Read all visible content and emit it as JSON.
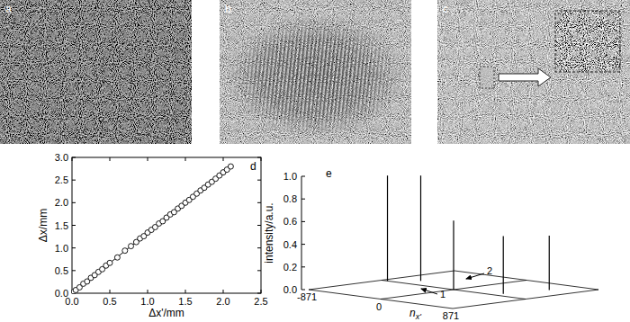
{
  "panels": [
    {
      "label": "a"
    },
    {
      "label": "b"
    },
    {
      "label": "c"
    }
  ],
  "chart_data": [
    {
      "type": "scatter",
      "title": "d",
      "xlabel": "Δx'/mm",
      "ylabel": "Δx/mm",
      "xlim": [
        0,
        2.5
      ],
      "ylim": [
        0,
        3.0
      ],
      "xticks": [
        {
          "value": 0,
          "label": "0.0"
        },
        {
          "value": 0.5,
          "label": "0.5"
        },
        {
          "value": 1.0,
          "label": "1.0"
        },
        {
          "value": 1.5,
          "label": "1.5"
        },
        {
          "value": 2.0,
          "label": "2.0"
        },
        {
          "value": 2.5,
          "label": "2.5"
        }
      ],
      "yticks": [
        {
          "value": 0,
          "label": "0.0"
        },
        {
          "value": 0.5,
          "label": "0.5"
        },
        {
          "value": 1.0,
          "label": "1.0"
        },
        {
          "value": 1.5,
          "label": "1.5"
        },
        {
          "value": 2.0,
          "label": "2.0"
        },
        {
          "value": 2.5,
          "label": "2.5"
        },
        {
          "value": 3.0,
          "label": "3.0"
        }
      ],
      "series": [
        {
          "type": "scatter",
          "marker": "circle",
          "color": "#000000",
          "x": [
            0.0,
            0.02,
            0.05,
            0.1,
            0.15,
            0.2,
            0.25,
            0.3,
            0.35,
            0.4,
            0.45,
            0.5,
            0.6,
            0.7,
            0.78,
            0.85,
            0.9,
            0.95,
            1.0,
            1.05,
            1.1,
            1.15,
            1.2,
            1.25,
            1.3,
            1.35,
            1.4,
            1.45,
            1.5,
            1.55,
            1.6,
            1.65,
            1.7,
            1.75,
            1.8,
            1.85,
            1.9,
            1.95,
            2.0,
            2.05,
            2.1
          ],
          "values": [
            0.0,
            0.03,
            0.07,
            0.13,
            0.21,
            0.26,
            0.34,
            0.4,
            0.47,
            0.53,
            0.61,
            0.67,
            0.79,
            0.94,
            1.04,
            1.13,
            1.21,
            1.26,
            1.34,
            1.4,
            1.46,
            1.54,
            1.59,
            1.67,
            1.74,
            1.79,
            1.87,
            1.93,
            2.0,
            2.06,
            2.13,
            2.2,
            2.27,
            2.33,
            2.4,
            2.46,
            2.53,
            2.6,
            2.67,
            2.73,
            2.8
          ]
        },
        {
          "type": "line",
          "line_style": "solid",
          "color": "#000000",
          "x": [
            0,
            2.1
          ],
          "values": [
            0,
            2.8
          ]
        }
      ]
    },
    {
      "type": "stem3d",
      "title": "e",
      "xlabel": {
        "main": "n",
        "sub": "x'"
      },
      "zlabel": "intensity/a.u.",
      "xlim": [
        -871,
        871
      ],
      "ylim": [
        -871,
        871
      ],
      "zlim": [
        0,
        1.0
      ],
      "xticks": [
        -871,
        0,
        871
      ],
      "zticks": [
        {
          "value": 0,
          "label": "0.0"
        },
        {
          "value": 0.2,
          "label": "0.2"
        },
        {
          "value": 0.4,
          "label": "0.4"
        },
        {
          "value": 0.6,
          "label": "0.6"
        },
        {
          "value": 0.8,
          "label": "0.8"
        },
        {
          "value": 1.0,
          "label": "1.0"
        }
      ],
      "annotations": [
        "1",
        "2"
      ],
      "series": [
        {
          "color": "#000000",
          "x": [
            -800,
            -600,
            0,
            500,
            600
          ],
          "y": [
            0,
            200,
            0,
            100,
            550
          ],
          "values": [
            0.93,
            0.93,
            0.61,
            0.51,
            0.48
          ]
        }
      ]
    }
  ]
}
